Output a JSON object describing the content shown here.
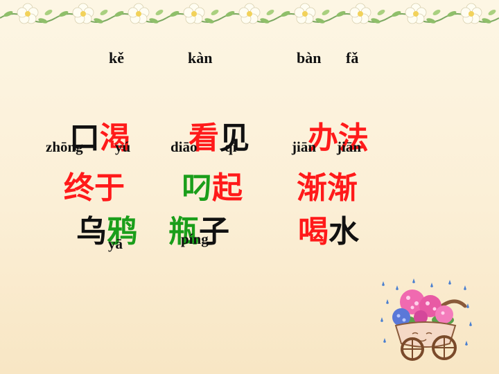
{
  "pinyin_top": {
    "ke": "kě",
    "kan": "kàn",
    "ban": "bàn",
    "fa": "fǎ"
  },
  "pinyin_mid": {
    "zhong": "zhōng",
    "yu": "yú",
    "diao": "diāo",
    "qi": "qǐ",
    "jian1": "jiān",
    "jian2": "jiān"
  },
  "pinyin_low": {
    "ya": "yā",
    "ping": "píng"
  },
  "row1": {
    "c1": "口",
    "c2": "渴",
    "c3": "看",
    "c4": "见",
    "c5": "办",
    "c6": "法"
  },
  "row2": {
    "c1": "终",
    "c2": "于",
    "c3": "叼",
    "c4": "起",
    "c5": "渐",
    "c6": "渐"
  },
  "row3": {
    "c1": "乌",
    "c2": "鸦",
    "c3": "瓶",
    "c4": "子",
    "c5": "喝",
    "c6": "水"
  },
  "colors": {
    "red": "#ff1a1a",
    "green": "#1a9e1a",
    "black": "#111111"
  }
}
